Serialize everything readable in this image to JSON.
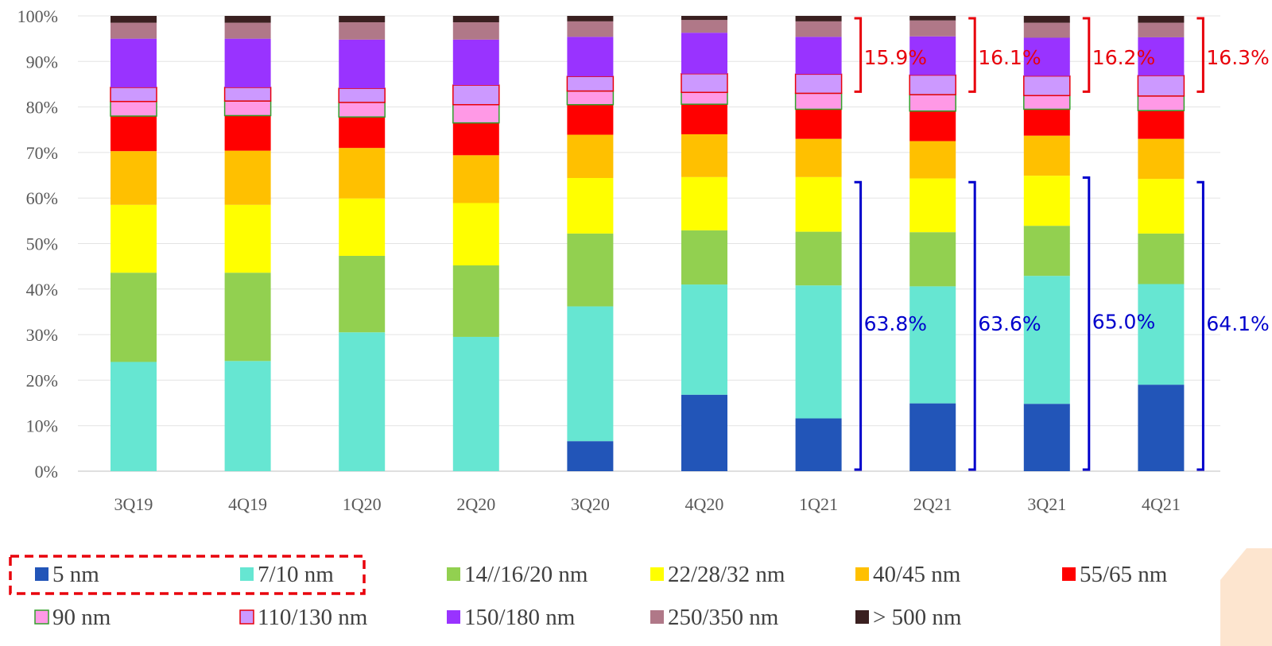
{
  "chart_data": {
    "type": "bar",
    "stacked": true,
    "categories": [
      "3Q19",
      "4Q19",
      "1Q20",
      "2Q20",
      "3Q20",
      "4Q20",
      "1Q21",
      "2Q21",
      "3Q21",
      "4Q21"
    ],
    "ylim": [
      0,
      100
    ],
    "yticks": [
      "0%",
      "10%",
      "20%",
      "30%",
      "40%",
      "50%",
      "60%",
      "70%",
      "80%",
      "90%",
      "100%"
    ],
    "grid": true,
    "legend_position": "bottom",
    "series": [
      {
        "name": "5 nm",
        "color": "#2255b8",
        "values": [
          0,
          0,
          0,
          0,
          6.6,
          16.8,
          11.6,
          14.9,
          14.8,
          19.0
        ]
      },
      {
        "name": "7/10 nm",
        "color": "#66e6d2",
        "values": [
          24.0,
          24.2,
          30.5,
          29.5,
          29.6,
          24.2,
          29.2,
          25.7,
          28.1,
          22.1
        ]
      },
      {
        "name": "14//16/20 nm",
        "color": "#92d050",
        "values": [
          19.6,
          19.4,
          16.8,
          15.7,
          16.0,
          11.9,
          11.8,
          11.9,
          11.0,
          11.1
        ]
      },
      {
        "name": "22/28/32 nm",
        "color": "#ffff00",
        "values": [
          14.9,
          14.9,
          12.6,
          13.7,
          12.2,
          11.7,
          12.0,
          11.8,
          11.0,
          12.0
        ]
      },
      {
        "name": "40/45 nm",
        "color": "#ffc000",
        "values": [
          11.8,
          11.9,
          11.1,
          10.5,
          9.5,
          9.4,
          8.4,
          8.2,
          8.8,
          8.8
        ]
      },
      {
        "name": "55/65 nm",
        "color": "#ff0000",
        "values": [
          7.7,
          7.7,
          6.8,
          7.1,
          6.6,
          6.6,
          6.5,
          6.6,
          5.8,
          6.2
        ]
      },
      {
        "name": "90 nm",
        "color": "#ff99e6",
        "values": [
          3.2,
          3.2,
          3.2,
          4.0,
          3.0,
          2.6,
          3.5,
          3.6,
          3.0,
          3.2
        ]
      },
      {
        "name": "110/130 nm",
        "color": "#cc99ff",
        "values": [
          3.1,
          3.0,
          3.1,
          4.3,
          3.2,
          4.1,
          4.2,
          4.3,
          4.3,
          4.5
        ]
      },
      {
        "name": "150/180 nm",
        "color": "#9933ff",
        "values": [
          10.7,
          10.7,
          10.7,
          10.0,
          8.7,
          9.0,
          8.2,
          8.5,
          8.4,
          8.4
        ]
      },
      {
        "name": "250/350 nm",
        "color": "#b07888",
        "values": [
          3.5,
          3.5,
          3.8,
          3.8,
          3.4,
          2.8,
          3.4,
          3.5,
          3.3,
          3.2
        ]
      },
      {
        "name": "> 500 nm",
        "color": "#3a2020",
        "values": [
          1.5,
          1.5,
          1.4,
          1.4,
          1.2,
          0.9,
          1.2,
          1.0,
          1.5,
          1.5
        ]
      }
    ],
    "outlined_segments": {
      "series": [
        "90 nm",
        "110/130 nm"
      ],
      "outline_colors": [
        "#33a02c",
        "#e8000b"
      ]
    },
    "annotations": [
      {
        "category": "1Q21",
        "label": "15.9%",
        "color": "#e8000b",
        "from": 83,
        "to": 100
      },
      {
        "category": "2Q21",
        "label": "16.1%",
        "color": "#e8000b",
        "from": 83,
        "to": 100
      },
      {
        "category": "3Q21",
        "label": "16.2%",
        "color": "#e8000b",
        "from": 83,
        "to": 100
      },
      {
        "category": "4Q21",
        "label": "16.3%",
        "color": "#e8000b",
        "from": 83,
        "to": 100
      },
      {
        "category": "1Q21",
        "label": "63.8%",
        "color": "#0000cc",
        "from": 0,
        "to": 64
      },
      {
        "category": "2Q21",
        "label": "63.6%",
        "color": "#0000cc",
        "from": 0,
        "to": 64
      },
      {
        "category": "3Q21",
        "label": "65.0%",
        "color": "#0000cc",
        "from": 0,
        "to": 65
      },
      {
        "category": "4Q21",
        "label": "64.1%",
        "color": "#0000cc",
        "from": 0,
        "to": 64
      }
    ],
    "legend_highlight": {
      "series": [
        "5 nm",
        "7/10 nm"
      ],
      "style": "dashed-red-box"
    }
  }
}
